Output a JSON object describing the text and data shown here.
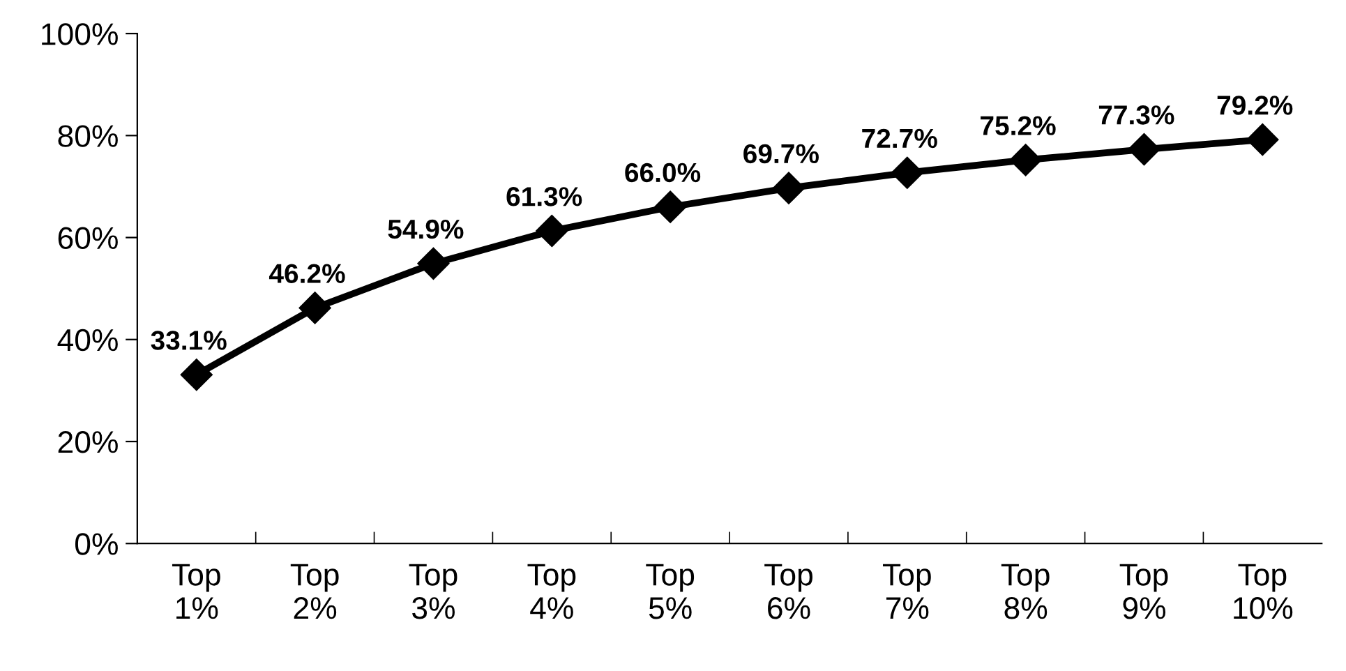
{
  "chart_data": {
    "type": "line",
    "categories": [
      "Top\n1%",
      "Top\n2%",
      "Top\n3%",
      "Top\n4%",
      "Top\n5%",
      "Top\n6%",
      "Top\n7%",
      "Top\n8%",
      "Top\n9%",
      "Top\n10%"
    ],
    "series": [
      {
        "color": "#000000",
        "values": [
          33.1,
          46.2,
          54.9,
          61.3,
          66.0,
          69.7,
          72.7,
          75.2,
          77.3,
          79.2
        ],
        "value_labels": [
          "33.1%",
          "46.2%",
          "54.9%",
          "61.3%",
          "66.0%",
          "69.7%",
          "72.7%",
          "75.2%",
          "77.3%",
          "79.2%"
        ]
      }
    ],
    "ylim": [
      0,
      100
    ],
    "yticks": [
      {
        "value": 0,
        "label": "0%"
      },
      {
        "value": 20,
        "label": "20%"
      },
      {
        "value": 40,
        "label": "40%"
      },
      {
        "value": 60,
        "label": "60%"
      },
      {
        "value": 80,
        "label": "80%"
      },
      {
        "value": 100,
        "label": "100%"
      }
    ],
    "marker": "diamond",
    "line_style": "solid",
    "grid": false,
    "legend": false
  }
}
